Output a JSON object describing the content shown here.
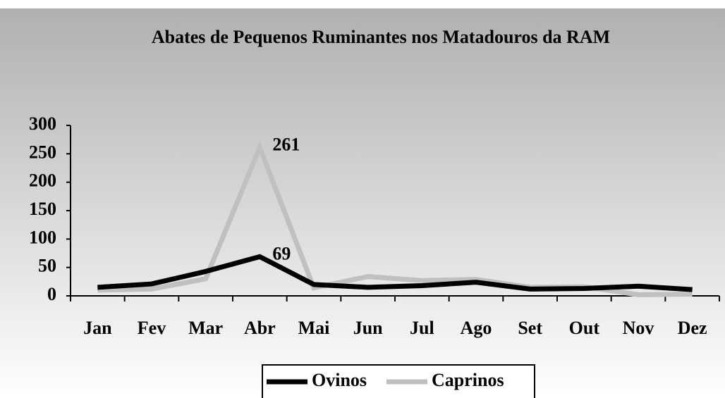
{
  "chart_data": {
    "type": "line",
    "title": "Abates de Pequenos Ruminantes nos Matadouros da RAM",
    "categories": [
      "Jan",
      "Fev",
      "Mar",
      "Abr",
      "Mai",
      "Jun",
      "Jul",
      "Ago",
      "Set",
      "Out",
      "Nov",
      "Dez"
    ],
    "series": [
      {
        "name": "Ovinos",
        "color": "#000000",
        "values": [
          15,
          21,
          43,
          69,
          20,
          15,
          18,
          24,
          12,
          13,
          17,
          11
        ],
        "labeled": [
          3
        ]
      },
      {
        "name": "Caprinos",
        "color": "#c0c0c0",
        "values": [
          10,
          12,
          30,
          261,
          14,
          34,
          27,
          29,
          15,
          16,
          2,
          3
        ],
        "labeled": [
          3
        ]
      }
    ],
    "ylim": [
      0,
      300
    ],
    "yticks": [
      0,
      50,
      100,
      150,
      200,
      250,
      300
    ],
    "grid": false,
    "legend": "bottom"
  }
}
